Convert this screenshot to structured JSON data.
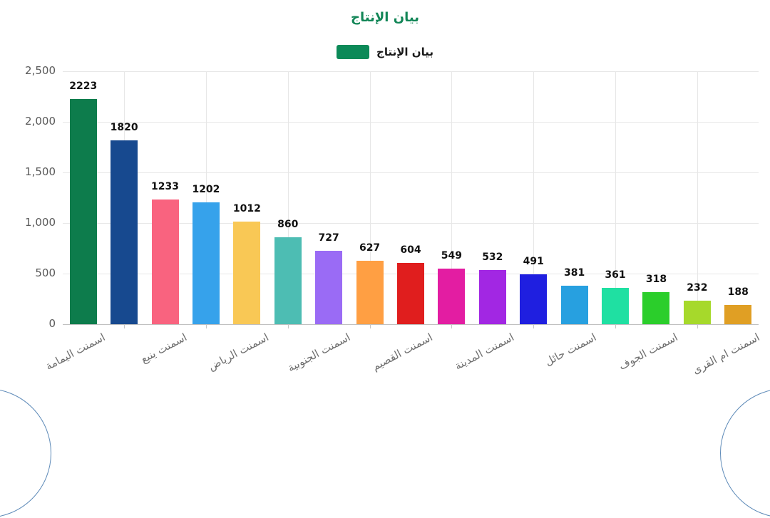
{
  "title": {
    "text": "بيان الإنتاج",
    "color": "#128657"
  },
  "legend": {
    "label": "بيان الإنتاج",
    "swatch_color": "#0c8a58"
  },
  "chart_data": {
    "type": "bar",
    "title": "بيان الإنتاج",
    "legend_entries": [
      "بيان الإنتاج"
    ],
    "legend_position": "top",
    "grid": true,
    "ylim": [
      0,
      2500
    ],
    "y_ticks": [
      "0",
      "500",
      "1,000",
      "1,500",
      "2,000",
      "2,500"
    ],
    "values": [
      2223,
      1820,
      1233,
      1202,
      1012,
      860,
      727,
      627,
      604,
      549,
      532,
      491,
      381,
      361,
      318,
      232,
      188
    ],
    "bar_colors": [
      "#0d7c4c",
      "#17498f",
      "#f9637f",
      "#36a2eb",
      "#f9c855",
      "#4dbdb3",
      "#9a6bf5",
      "#ff9f43",
      "#e01e1e",
      "#e31da2",
      "#a227e3",
      "#1f1fe0",
      "#27a0e0",
      "#1fe0a2",
      "#2bce2b",
      "#a6d92b",
      "#e09f24"
    ],
    "x_tick_labels": [
      "اسمنت اليمامة",
      "اسمنت ينبع",
      "اسمنت الرياض",
      "اسمنت الجنوبية",
      "اسمنت القصيم",
      "اسمنت المدينة",
      "اسمنت حائل",
      "اسمنت الجوف",
      "اسمنت ام القرى"
    ],
    "x_label_interval": 2,
    "x_label_rotation_deg": -28
  },
  "decor": {
    "corner_arc_color": "#5d8ab8"
  }
}
